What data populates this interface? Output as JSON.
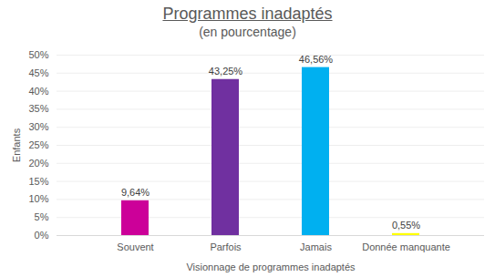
{
  "chart_data": {
    "type": "bar",
    "title": "Programmes inadaptés",
    "subtitle": "(en pourcentage)",
    "x_label": "Visionnage de programmes inadaptés",
    "y_label": "Enfants",
    "categories": [
      "Souvent",
      "Parfois",
      "Jamais",
      "Donnée manquante"
    ],
    "values": [
      9.64,
      43.25,
      46.56,
      0.55
    ],
    "value_labels": [
      "9,64%",
      "43,25%",
      "46,56%",
      "0,55%"
    ],
    "colors": [
      "#cc0099",
      "#7030a0",
      "#00b0f0",
      "#ffff00"
    ],
    "ylim": [
      0,
      50
    ],
    "yticks": [
      {
        "value": 0,
        "label": "0%"
      },
      {
        "value": 5,
        "label": "5%"
      },
      {
        "value": 10,
        "label": "10%"
      },
      {
        "value": 15,
        "label": "15%"
      },
      {
        "value": 20,
        "label": "20%"
      },
      {
        "value": 25,
        "label": "25%"
      },
      {
        "value": 30,
        "label": "30%"
      },
      {
        "value": 35,
        "label": "35%"
      },
      {
        "value": 40,
        "label": "40%"
      },
      {
        "value": 45,
        "label": "45%"
      },
      {
        "value": 50,
        "label": "50%"
      }
    ],
    "grid": true,
    "data_labels": true
  }
}
